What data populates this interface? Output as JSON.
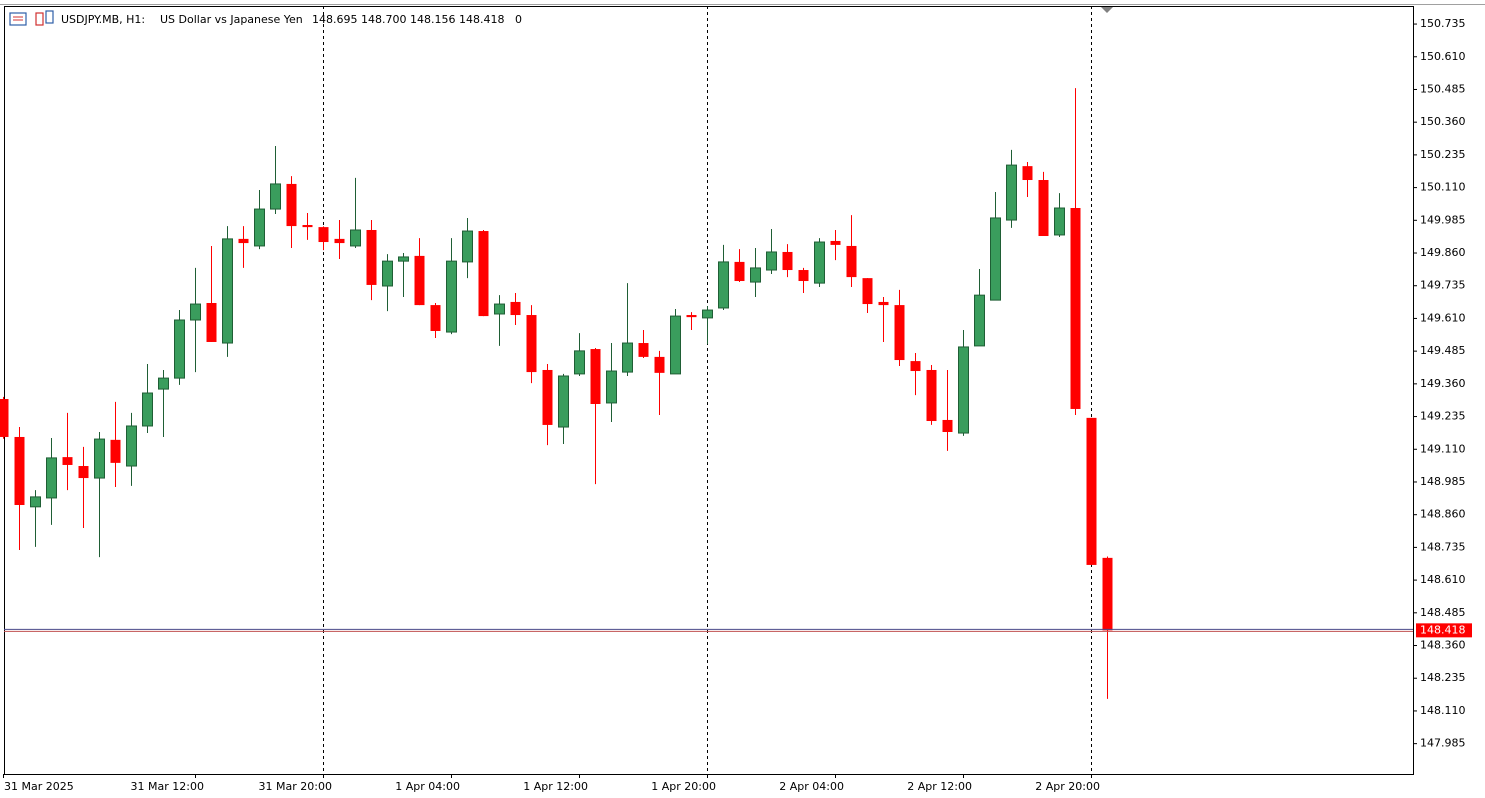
{
  "header": {
    "symbol": "USDJPY.MB, H1:",
    "description": "US Dollar vs Japanese Yen",
    "quote": "148.695 148.700 148.156 148.418",
    "spread": "0"
  },
  "chart_data": {
    "type": "candlestick",
    "categories": [
      "31 Mar 2025",
      null,
      null,
      null,
      null,
      null,
      null,
      null,
      null,
      null,
      null,
      null,
      "31 Mar 12:00",
      null,
      null,
      null,
      null,
      null,
      null,
      null,
      "31 Mar 20:00",
      null,
      null,
      null,
      null,
      null,
      null,
      null,
      "1 Apr 04:00",
      null,
      null,
      null,
      null,
      null,
      null,
      null,
      "1 Apr 12:00",
      null,
      null,
      null,
      null,
      null,
      null,
      null,
      "1 Apr 20:00",
      null,
      null,
      null,
      null,
      null,
      null,
      null,
      "2 Apr 04:00",
      null,
      null,
      null,
      null,
      null,
      null,
      null,
      "2 Apr 12:00",
      null,
      null,
      null,
      null,
      null,
      null,
      null,
      "2 Apr 20:00",
      null
    ],
    "open": [
      149.302,
      149.157,
      148.89,
      148.924,
      149.08,
      149.046,
      149.0,
      149.146,
      149.046,
      149.199,
      149.34,
      149.382,
      149.604,
      149.669,
      149.516,
      149.914,
      149.887,
      150.028,
      150.124,
      149.967,
      149.959,
      149.914,
      149.887,
      149.948,
      149.734,
      149.829,
      149.849,
      149.661,
      149.558,
      149.826,
      149.944,
      149.627,
      149.673,
      149.623,
      149.413,
      149.195,
      149.398,
      149.493,
      149.287,
      149.405,
      149.516,
      149.463,
      149.398,
      149.623,
      149.612,
      149.65,
      149.826,
      149.749,
      149.795,
      149.864,
      149.795,
      149.745,
      149.906,
      149.887,
      149.764,
      149.673,
      149.661,
      149.447,
      149.413,
      149.222,
      149.172,
      149.505,
      149.68,
      149.986,
      150.192,
      150.139,
      149.929,
      150.032,
      149.23,
      148.695
    ],
    "high": [
      149.31,
      149.195,
      148.954,
      149.153,
      149.249,
      149.119,
      149.176,
      149.291,
      149.249,
      149.436,
      149.413,
      149.642,
      149.803,
      149.887,
      149.963,
      149.963,
      150.101,
      150.269,
      150.154,
      150.013,
      149.962,
      149.986,
      150.147,
      149.986,
      149.856,
      149.86,
      149.917,
      149.669,
      149.917,
      149.994,
      149.948,
      149.699,
      149.707,
      149.661,
      149.436,
      149.398,
      149.554,
      149.497,
      149.516,
      149.745,
      149.566,
      149.486,
      149.646,
      149.634,
      149.657,
      149.891,
      149.875,
      149.879,
      149.952,
      149.894,
      149.803,
      149.917,
      149.948,
      150.005,
      149.764,
      149.692,
      149.719,
      149.478,
      149.432,
      149.413,
      149.566,
      149.799,
      150.093,
      150.254,
      150.208,
      150.17,
      150.089,
      150.49,
      149.23,
      148.7
    ],
    "low": [
      149.15,
      148.725,
      148.737,
      148.821,
      148.954,
      148.809,
      148.698,
      148.966,
      148.97,
      149.172,
      149.157,
      149.356,
      149.405,
      149.52,
      149.463,
      149.803,
      149.875,
      150.009,
      149.879,
      149.91,
      149.871,
      149.837,
      149.879,
      149.68,
      149.638,
      149.692,
      149.661,
      149.535,
      149.55,
      149.764,
      149.619,
      149.505,
      149.585,
      149.363,
      149.126,
      149.13,
      149.39,
      148.977,
      149.214,
      149.39,
      149.459,
      149.241,
      149.398,
      149.566,
      149.512,
      149.642,
      149.749,
      149.692,
      149.78,
      149.768,
      149.707,
      149.73,
      149.833,
      149.73,
      149.631,
      149.52,
      149.428,
      149.317,
      149.203,
      149.104,
      149.161,
      149.505,
      149.68,
      149.956,
      150.074,
      149.925,
      149.921,
      149.241,
      148.668,
      148.156
    ],
    "close": [
      149.157,
      148.897,
      148.928,
      149.077,
      149.05,
      149.0,
      149.149,
      149.058,
      149.199,
      149.325,
      149.382,
      149.604,
      149.665,
      149.52,
      149.914,
      149.898,
      150.028,
      150.124,
      149.963,
      149.959,
      149.902,
      149.898,
      149.948,
      149.738,
      149.829,
      149.845,
      149.661,
      149.562,
      149.829,
      149.944,
      149.619,
      149.665,
      149.623,
      149.405,
      149.203,
      149.39,
      149.486,
      149.283,
      149.409,
      149.516,
      149.463,
      149.402,
      149.619,
      149.615,
      149.642,
      149.826,
      149.753,
      149.803,
      149.864,
      149.795,
      149.753,
      149.902,
      149.891,
      149.768,
      149.665,
      149.661,
      149.451,
      149.409,
      149.218,
      149.176,
      149.501,
      149.699,
      149.994,
      150.196,
      150.139,
      149.925,
      150.032,
      149.264,
      148.668,
      148.418
    ],
    "up_color": "#3a9d5d",
    "down_color": "#ff0000",
    "last_price": 148.418,
    "ylim": [
      147.869,
      150.804
    ],
    "yticks": [
      147.985,
      {
        "value": 148.11,
        "label": "148.110"
      },
      148.235,
      {
        "value": 148.36,
        "label": "148.360"
      },
      148.485,
      {
        "value": 148.61,
        "label": "148.610"
      },
      148.735,
      {
        "value": 148.86,
        "label": "148.860"
      },
      148.985,
      {
        "value": 149.11,
        "label": "149.110"
      },
      149.235,
      {
        "value": 149.36,
        "label": "149.360"
      },
      149.485,
      {
        "value": 149.61,
        "label": "149.610"
      },
      149.735,
      {
        "value": 149.86,
        "label": "149.860"
      },
      149.985,
      {
        "value": 150.11,
        "label": "150.110"
      },
      150.235,
      {
        "value": 150.36,
        "label": "150.360"
      },
      150.485,
      {
        "value": 150.61,
        "label": "150.610"
      },
      150.735
    ]
  }
}
